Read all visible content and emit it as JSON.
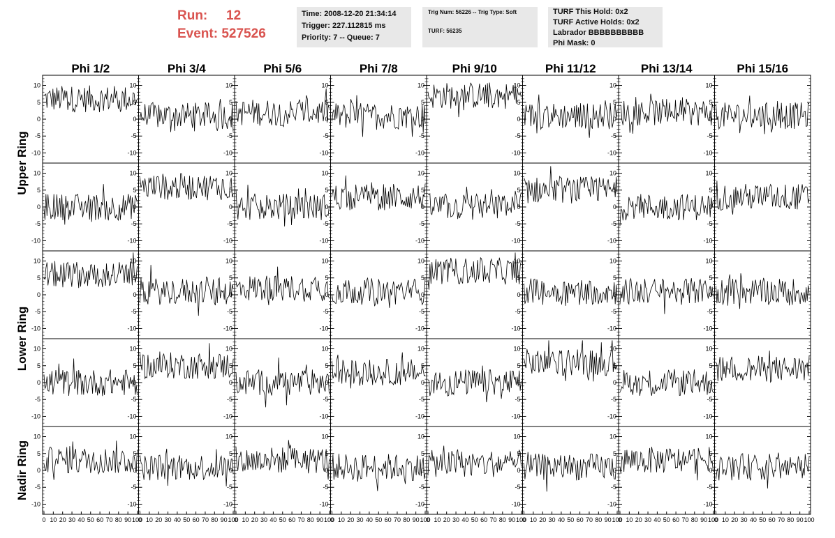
{
  "header": {
    "run_label": "Run:",
    "run_value": "12",
    "event_label": "Event:",
    "event_value": "527526",
    "time": "Time: 2008-12-20 21:34:14",
    "trigger": "Trigger: 227.112815 ms",
    "priority": "Priority: 7 -- Queue: 7",
    "trig_num": "Trig Num: 56226 -- Trig Type: Soft",
    "turf": "TURF: 56235",
    "turf_hold": "TURF This Hold: 0x2",
    "turf_active": "TURF Active Holds: 0x2",
    "labrador": "Labrador BBBBBBBBBB",
    "phi_mask": "Phi Mask: 0"
  },
  "colors": {
    "header_accent": "#d9534f",
    "info_bg": "#e8e8e8",
    "trace": "#000000"
  },
  "chart_data": {
    "type": "line",
    "columns": [
      "Phi 1/2",
      "Phi 3/4",
      "Phi 5/6",
      "Phi 7/8",
      "Phi 9/10",
      "Phi 11/12",
      "Phi 13/14",
      "Phi 15/16"
    ],
    "rows": [
      "Upper Ring",
      "Lower Ring",
      "Nadir Ring"
    ],
    "panel_rows": 5,
    "xlim": [
      0,
      100
    ],
    "ylim": [
      -13,
      13
    ],
    "x_ticks": [
      0,
      10,
      20,
      30,
      40,
      50,
      60,
      70,
      80,
      90,
      100
    ],
    "y_ticks": [
      -10,
      -5,
      0,
      5,
      10
    ],
    "samples_per_trace": 95,
    "baselines": [
      [
        6,
        1,
        2,
        1,
        7,
        1,
        2,
        1
      ],
      [
        0,
        6,
        0,
        3,
        0,
        5,
        0,
        3
      ],
      [
        6,
        1,
        2,
        1,
        7,
        1,
        1,
        1
      ],
      [
        0,
        5,
        0,
        3,
        0,
        6,
        0,
        4
      ],
      [
        3,
        1,
        3,
        1,
        2,
        1,
        3,
        1
      ]
    ],
    "grid": false
  }
}
